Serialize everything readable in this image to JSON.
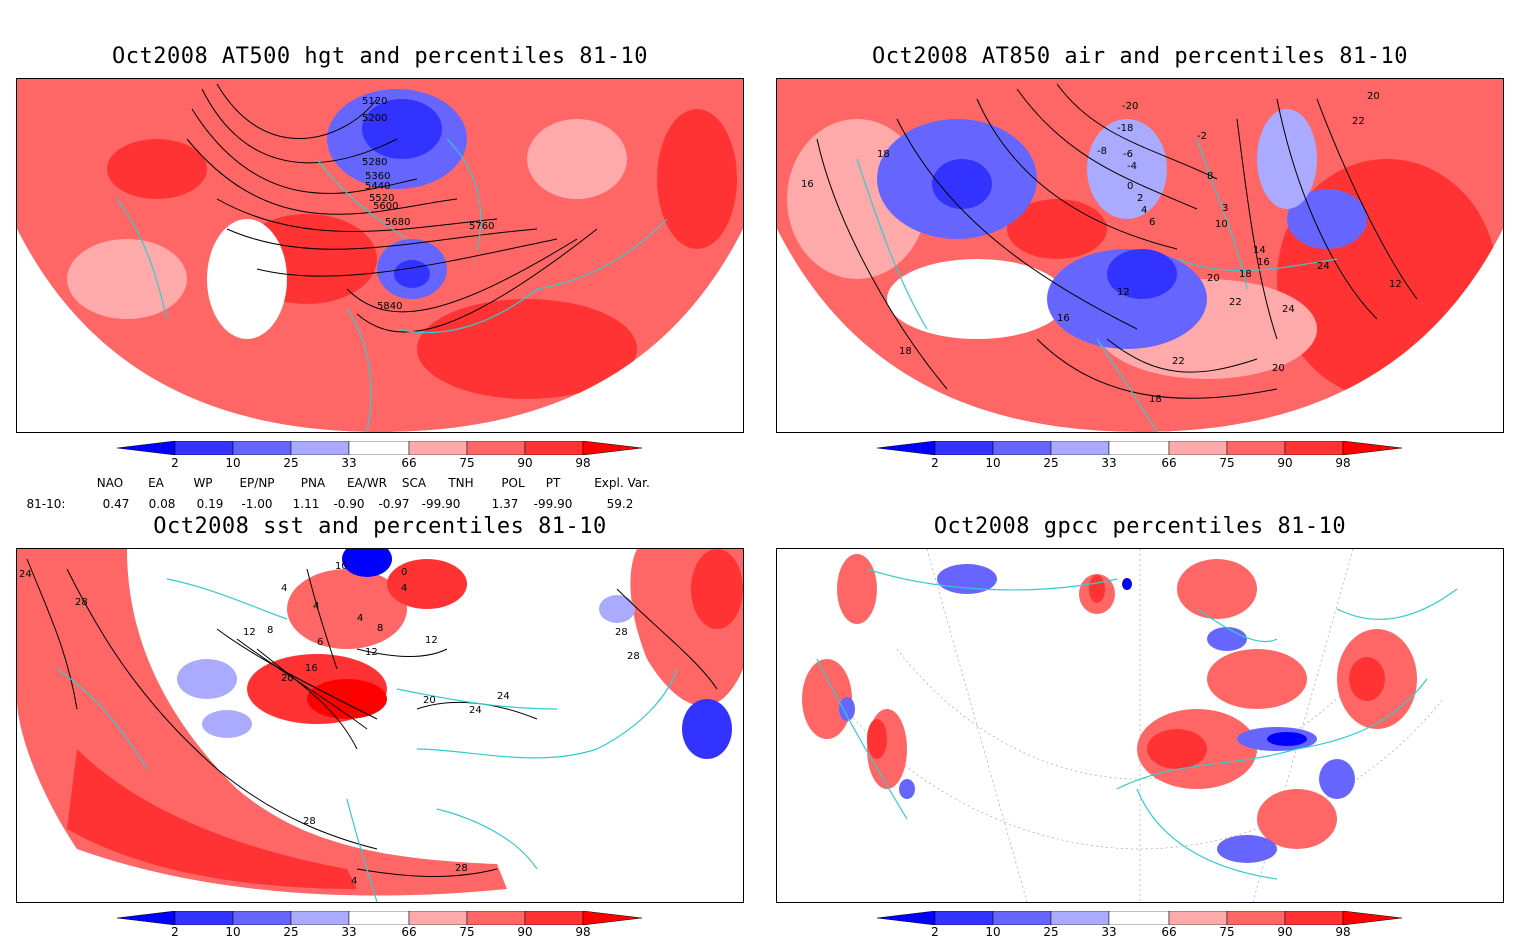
{
  "panels": [
    {
      "id": "hgt500",
      "title": "Oct2008 AT500 hgt and percentiles 81-10",
      "contour_labels": [
        "5120",
        "5200",
        "5280",
        "5360",
        "5440",
        "5520",
        "5600",
        "5680",
        "5760",
        "5840"
      ]
    },
    {
      "id": "air850",
      "title": "Oct2008 AT850 air and percentiles 81-10",
      "contour_labels": [
        "20",
        "22",
        "18",
        "16",
        "-20",
        "-18",
        "-8",
        "-6",
        "-4",
        "-2",
        "0",
        "2",
        "4",
        "6",
        "8",
        "10",
        "12",
        "14",
        "16",
        "18",
        "20",
        "22",
        "24",
        "24",
        "22",
        "20",
        "18",
        "18",
        "16",
        "12",
        "3"
      ]
    },
    {
      "id": "sst",
      "title": "Oct2008 sst and percentiles 81-10",
      "contour_labels": [
        "24",
        "28",
        "10",
        "4",
        "4",
        "8",
        "0",
        "4",
        "4",
        "8",
        "12",
        "12",
        "16",
        "20",
        "24",
        "20",
        "24",
        "28",
        "28",
        "28",
        "28",
        "12",
        "6",
        "4"
      ]
    },
    {
      "id": "gpcc",
      "title": "Oct2008 gpcc percentiles 81-10",
      "contour_labels": []
    }
  ],
  "colorbar": {
    "labels": [
      "2",
      "10",
      "25",
      "33",
      "66",
      "75",
      "90",
      "98"
    ],
    "colors": {
      "below2": "#0000ff",
      "b2_10": "#3333ff",
      "b10_25": "#6666ff",
      "b25_33": "#aaaaff",
      "mid": "#ffffff",
      "a66_75": "#ffaaaa",
      "a75_90": "#ff6666",
      "a90_98": "#ff3333",
      "above98": "#ff0000"
    }
  },
  "indices": {
    "headers": [
      "NAO",
      "EA",
      "WP",
      "EP/NP",
      "PNA",
      "EA/WR",
      "SCA",
      "TNH",
      "POL",
      "PT",
      "Expl. Var."
    ],
    "row_label": "81-10:",
    "values": [
      "0.47",
      "0.08",
      "0.19",
      "-1.00",
      "1.11",
      "-0.90",
      "-0.97",
      "-99.90",
      "1.37",
      "-99.90",
      "59.2"
    ]
  },
  "map_colors": {
    "coast": "#33cccc",
    "contour": "#000000",
    "grid": "#999999"
  }
}
